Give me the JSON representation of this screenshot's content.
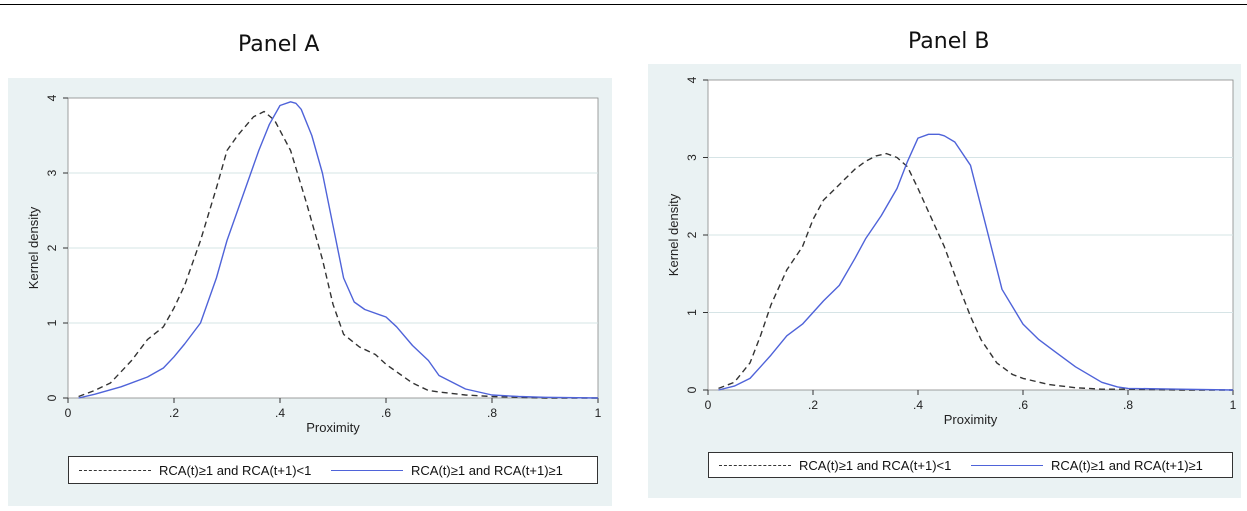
{
  "panels": [
    {
      "title": "Panel A"
    },
    {
      "title": "Panel B"
    }
  ],
  "colors": {
    "dashed": "#333333",
    "solid": "#4f63d9",
    "background": "#eaf2f3"
  },
  "chart_data": [
    {
      "type": "line",
      "title": "Panel A",
      "xlabel": "Proximity",
      "ylabel": "Kernel density",
      "xlim": [
        0,
        1
      ],
      "ylim": [
        0,
        4
      ],
      "xticks": [
        {
          "value": 0,
          "label": "0"
        },
        {
          "value": 0.2,
          "label": ".2"
        },
        {
          "value": 0.4,
          "label": ".4"
        },
        {
          "value": 0.6,
          "label": ".6"
        },
        {
          "value": 0.8,
          "label": ".8"
        },
        {
          "value": 1,
          "label": "1"
        }
      ],
      "yticks": [
        {
          "value": 0,
          "label": "0"
        },
        {
          "value": 1,
          "label": "1"
        },
        {
          "value": 2,
          "label": "2"
        },
        {
          "value": 3,
          "label": "3"
        },
        {
          "value": 4,
          "label": "4"
        }
      ],
      "grid": "horizontal",
      "legend_position": "bottom",
      "series": [
        {
          "name": "RCA(t)≥1 and RCA(t+1)<1",
          "style": "dashed",
          "x": [
            0.02,
            0.05,
            0.08,
            0.1,
            0.12,
            0.15,
            0.18,
            0.2,
            0.22,
            0.25,
            0.28,
            0.3,
            0.32,
            0.35,
            0.37,
            0.39,
            0.42,
            0.45,
            0.48,
            0.5,
            0.52,
            0.55,
            0.58,
            0.6,
            0.62,
            0.65,
            0.68,
            0.7,
            0.75,
            0.8,
            0.85,
            0.9,
            1.0
          ],
          "y": [
            0.02,
            0.1,
            0.2,
            0.35,
            0.5,
            0.78,
            0.95,
            1.2,
            1.5,
            2.1,
            2.8,
            3.3,
            3.5,
            3.75,
            3.82,
            3.7,
            3.3,
            2.6,
            1.85,
            1.25,
            0.85,
            0.68,
            0.58,
            0.45,
            0.35,
            0.2,
            0.1,
            0.08,
            0.04,
            0.02,
            0.01,
            0.0,
            0.0
          ]
        },
        {
          "name": "RCA(t)≥1 and RCA(t+1)≥1",
          "style": "solid",
          "x": [
            0.02,
            0.05,
            0.1,
            0.15,
            0.18,
            0.2,
            0.22,
            0.25,
            0.28,
            0.3,
            0.33,
            0.36,
            0.38,
            0.4,
            0.42,
            0.43,
            0.44,
            0.46,
            0.48,
            0.5,
            0.52,
            0.54,
            0.56,
            0.6,
            0.62,
            0.65,
            0.68,
            0.7,
            0.75,
            0.8,
            0.85,
            0.9,
            1.0
          ],
          "y": [
            0.0,
            0.05,
            0.15,
            0.28,
            0.4,
            0.55,
            0.72,
            1.0,
            1.6,
            2.1,
            2.7,
            3.3,
            3.65,
            3.9,
            3.95,
            3.93,
            3.85,
            3.5,
            3.0,
            2.3,
            1.6,
            1.28,
            1.18,
            1.08,
            0.95,
            0.7,
            0.5,
            0.3,
            0.12,
            0.04,
            0.02,
            0.01,
            0.0
          ]
        }
      ]
    },
    {
      "type": "line",
      "title": "Panel B",
      "xlabel": "Proximity",
      "ylabel": "Kernel density",
      "xlim": [
        0,
        1
      ],
      "ylim": [
        0,
        4
      ],
      "xticks": [
        {
          "value": 0,
          "label": "0"
        },
        {
          "value": 0.2,
          "label": ".2"
        },
        {
          "value": 0.4,
          "label": ".4"
        },
        {
          "value": 0.6,
          "label": ".6"
        },
        {
          "value": 0.8,
          "label": ".8"
        },
        {
          "value": 1,
          "label": "1"
        }
      ],
      "yticks": [
        {
          "value": 0,
          "label": "0"
        },
        {
          "value": 1,
          "label": "1"
        },
        {
          "value": 2,
          "label": "2"
        },
        {
          "value": 3,
          "label": "3"
        },
        {
          "value": 4,
          "label": "4"
        }
      ],
      "grid": "horizontal",
      "legend_position": "bottom",
      "series": [
        {
          "name": "RCA(t)≥1 and RCA(t+1)<1",
          "style": "dashed",
          "x": [
            0.02,
            0.05,
            0.08,
            0.1,
            0.12,
            0.15,
            0.18,
            0.2,
            0.22,
            0.25,
            0.28,
            0.3,
            0.32,
            0.34,
            0.36,
            0.38,
            0.4,
            0.42,
            0.45,
            0.48,
            0.5,
            0.52,
            0.55,
            0.58,
            0.6,
            0.65,
            0.7,
            0.75,
            0.8,
            0.9,
            1.0
          ],
          "y": [
            0.02,
            0.1,
            0.35,
            0.7,
            1.1,
            1.55,
            1.85,
            2.2,
            2.45,
            2.65,
            2.85,
            2.95,
            3.02,
            3.05,
            3.0,
            2.88,
            2.6,
            2.3,
            1.85,
            1.3,
            0.95,
            0.65,
            0.35,
            0.2,
            0.15,
            0.07,
            0.03,
            0.01,
            0.01,
            0.0,
            0.0
          ]
        },
        {
          "name": "RCA(t)≥1 and RCA(t+1)≥1",
          "style": "solid",
          "x": [
            0.02,
            0.05,
            0.08,
            0.1,
            0.12,
            0.15,
            0.18,
            0.2,
            0.22,
            0.25,
            0.28,
            0.3,
            0.33,
            0.36,
            0.38,
            0.4,
            0.42,
            0.44,
            0.45,
            0.47,
            0.5,
            0.53,
            0.56,
            0.6,
            0.63,
            0.66,
            0.7,
            0.75,
            0.78,
            0.8,
            0.9,
            1.0
          ],
          "y": [
            0.0,
            0.05,
            0.15,
            0.3,
            0.45,
            0.7,
            0.85,
            1.0,
            1.15,
            1.35,
            1.7,
            1.95,
            2.25,
            2.6,
            2.95,
            3.25,
            3.3,
            3.3,
            3.28,
            3.2,
            2.9,
            2.1,
            1.3,
            0.85,
            0.65,
            0.5,
            0.3,
            0.1,
            0.04,
            0.02,
            0.01,
            0.0
          ]
        }
      ]
    }
  ]
}
